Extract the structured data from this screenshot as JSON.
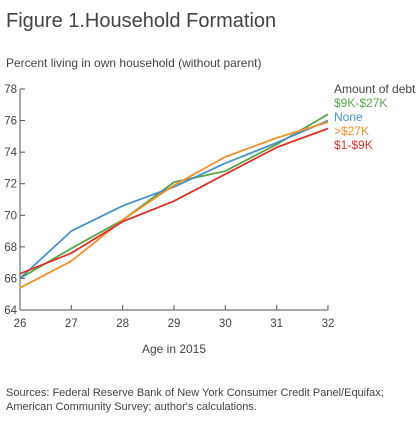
{
  "header": {
    "title": "Figure 1.Household Formation",
    "subtitle": "Percent living in own household (without parent)"
  },
  "footer": {
    "sources": "Sources: Federal Reserve Bank of New York Consumer Credit Panel/Equifax; American Community Survey; author's calculations."
  },
  "chart_data": {
    "type": "line",
    "title": "Figure 1.Household Formation",
    "subtitle": "Percent living in own household (without parent)",
    "xlabel": "Age in 2015",
    "ylabel": "",
    "x": [
      26,
      27,
      28,
      29,
      30,
      31,
      32
    ],
    "xlim": [
      26,
      32
    ],
    "ylim": [
      64,
      78
    ],
    "yticks": [
      64,
      66,
      68,
      70,
      72,
      74,
      76,
      78
    ],
    "grid": false,
    "legend_title": "Amount of debt",
    "legend_placement": "right",
    "series": [
      {
        "name": "$9K-$27K",
        "color": "#5aa54a",
        "values": [
          66.0,
          67.9,
          69.7,
          72.1,
          72.8,
          74.5,
          76.4
        ]
      },
      {
        "name": "None",
        "color": "#4a90c8",
        "values": [
          66.0,
          69.0,
          70.6,
          71.8,
          73.3,
          74.6,
          76.0
        ]
      },
      {
        "name": ">$27K",
        "color": "#f0912c",
        "values": [
          65.4,
          67.1,
          69.7,
          71.9,
          73.7,
          74.9,
          75.9
        ]
      },
      {
        "name": "$1-$9K",
        "color": "#d9352b",
        "values": [
          66.3,
          67.6,
          69.6,
          70.9,
          72.6,
          74.3,
          75.5
        ]
      }
    ]
  }
}
